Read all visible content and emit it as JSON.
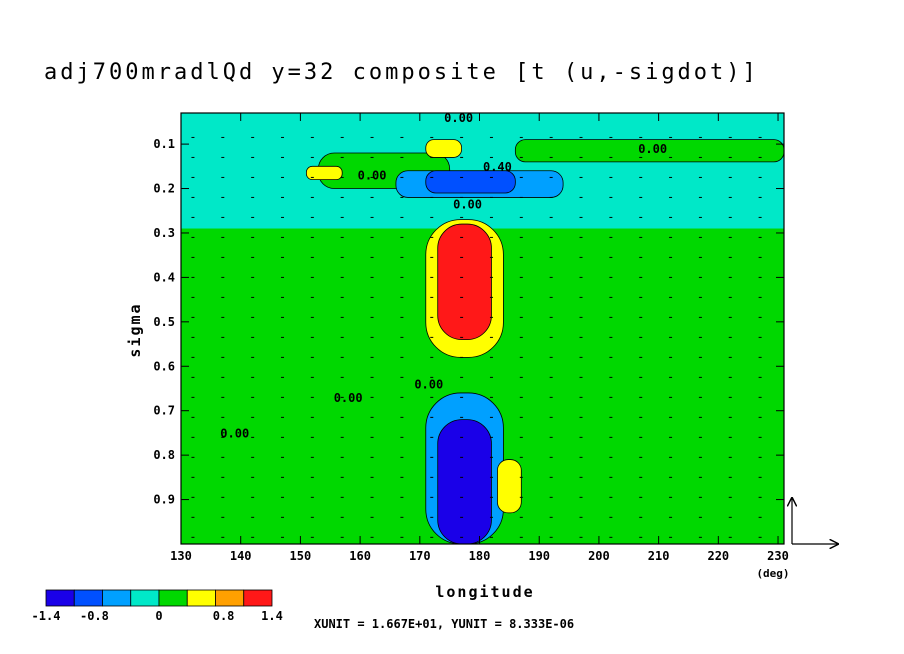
{
  "chart_data": {
    "type": "heatmap",
    "title": "adj700mradlQd y=32 composite [t (u,-sigdot)]",
    "xlabel": "longitude",
    "xunit_label": "(deg)",
    "ylabel": "sigma",
    "x_ticks": [
      130,
      140,
      150,
      160,
      170,
      180,
      190,
      200,
      210,
      220,
      230
    ],
    "y_ticks": [
      0.1,
      0.2,
      0.3,
      0.4,
      0.5,
      0.6,
      0.7,
      0.8,
      0.9
    ],
    "xlim": [
      130,
      231
    ],
    "ylim": [
      0.03,
      1.0
    ],
    "y_inverted": true,
    "colorbar": {
      "colors": [
        "#1a00e8",
        "#0050ff",
        "#00a0ff",
        "#00e8c8",
        "#00d800",
        "#ffff00",
        "#ffa000",
        "#ff1818"
      ],
      "labels": [
        "-1.4",
        "-0.8",
        "0",
        "0.8",
        "1.4"
      ],
      "label_values": [
        -1.4,
        -0.8,
        0,
        0.8,
        1.4
      ],
      "range": [
        -1.4,
        1.4
      ]
    },
    "contour_labels": [
      {
        "text": "0.00",
        "lon": 176.5,
        "sigma": 0.05
      },
      {
        "text": "0.00",
        "lon": 209,
        "sigma": 0.12
      },
      {
        "text": "0.00",
        "lon": 162,
        "sigma": 0.18
      },
      {
        "text": "0.40",
        "lon": 183,
        "sigma": 0.16
      },
      {
        "text": "0.00",
        "lon": 178,
        "sigma": 0.245
      },
      {
        "text": "0.00",
        "lon": 158,
        "sigma": 0.68
      },
      {
        "text": "0.00",
        "lon": 139,
        "sigma": 0.76
      },
      {
        "text": "0.00",
        "lon": 171.5,
        "sigma": 0.65
      }
    ],
    "field_regions": [
      {
        "level": 3,
        "lon": [
          130,
          231
        ],
        "sigma": [
          0.03,
          1.0
        ]
      },
      {
        "level": 4,
        "lon": [
          130,
          231
        ],
        "sigma": [
          0.29,
          1.0
        ]
      },
      {
        "level": 4,
        "lon": [
          153,
          175
        ],
        "sigma": [
          0.12,
          0.2
        ]
      },
      {
        "level": 4,
        "lon": [
          186,
          231
        ],
        "sigma": [
          0.09,
          0.14
        ]
      },
      {
        "level": 2,
        "lon": [
          166,
          194
        ],
        "sigma": [
          0.16,
          0.22
        ]
      },
      {
        "level": 1,
        "lon": [
          171,
          186
        ],
        "sigma": [
          0.16,
          0.21
        ]
      },
      {
        "level": 5,
        "lon": [
          171,
          177
        ],
        "sigma": [
          0.09,
          0.13
        ]
      },
      {
        "level": 5,
        "lon": [
          151,
          157
        ],
        "sigma": [
          0.15,
          0.18
        ]
      },
      {
        "level": 5,
        "lon": [
          171,
          184
        ],
        "sigma": [
          0.27,
          0.58
        ]
      },
      {
        "level": 7,
        "lon": [
          173,
          182
        ],
        "sigma": [
          0.28,
          0.54
        ]
      },
      {
        "level": 2,
        "lon": [
          171,
          184
        ],
        "sigma": [
          0.66,
          1.0
        ]
      },
      {
        "level": 0,
        "lon": [
          173,
          182
        ],
        "sigma": [
          0.72,
          1.0
        ]
      },
      {
        "level": 5,
        "lon": [
          183,
          187
        ],
        "sigma": [
          0.81,
          0.93
        ]
      }
    ]
  },
  "footnote": "XUNIT = 1.667E+01, YUNIT = 8.333E-06"
}
